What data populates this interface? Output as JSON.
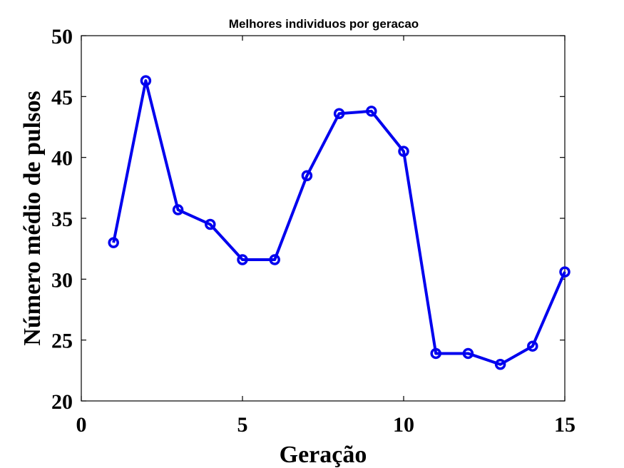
{
  "chart_data": {
    "type": "line",
    "title": "Melhores individuos por geracao",
    "xlabel": "Geração",
    "ylabel": "Número médio de pulsos",
    "xlim": [
      0,
      15
    ],
    "ylim": [
      20,
      50
    ],
    "xticks": [
      0,
      5,
      10,
      15
    ],
    "yticks": [
      20,
      25,
      30,
      35,
      40,
      45,
      50
    ],
    "grid": false,
    "color": "#0000ee",
    "marker": "circle",
    "series": [
      {
        "x": [
          1,
          2,
          3,
          4,
          5,
          6,
          7,
          8,
          9,
          10,
          11,
          12,
          13,
          14,
          15
        ],
        "values": [
          33.0,
          46.3,
          35.7,
          34.5,
          31.6,
          31.6,
          38.5,
          43.6,
          43.8,
          40.5,
          23.9,
          23.9,
          23.0,
          24.5,
          30.6
        ]
      }
    ]
  }
}
